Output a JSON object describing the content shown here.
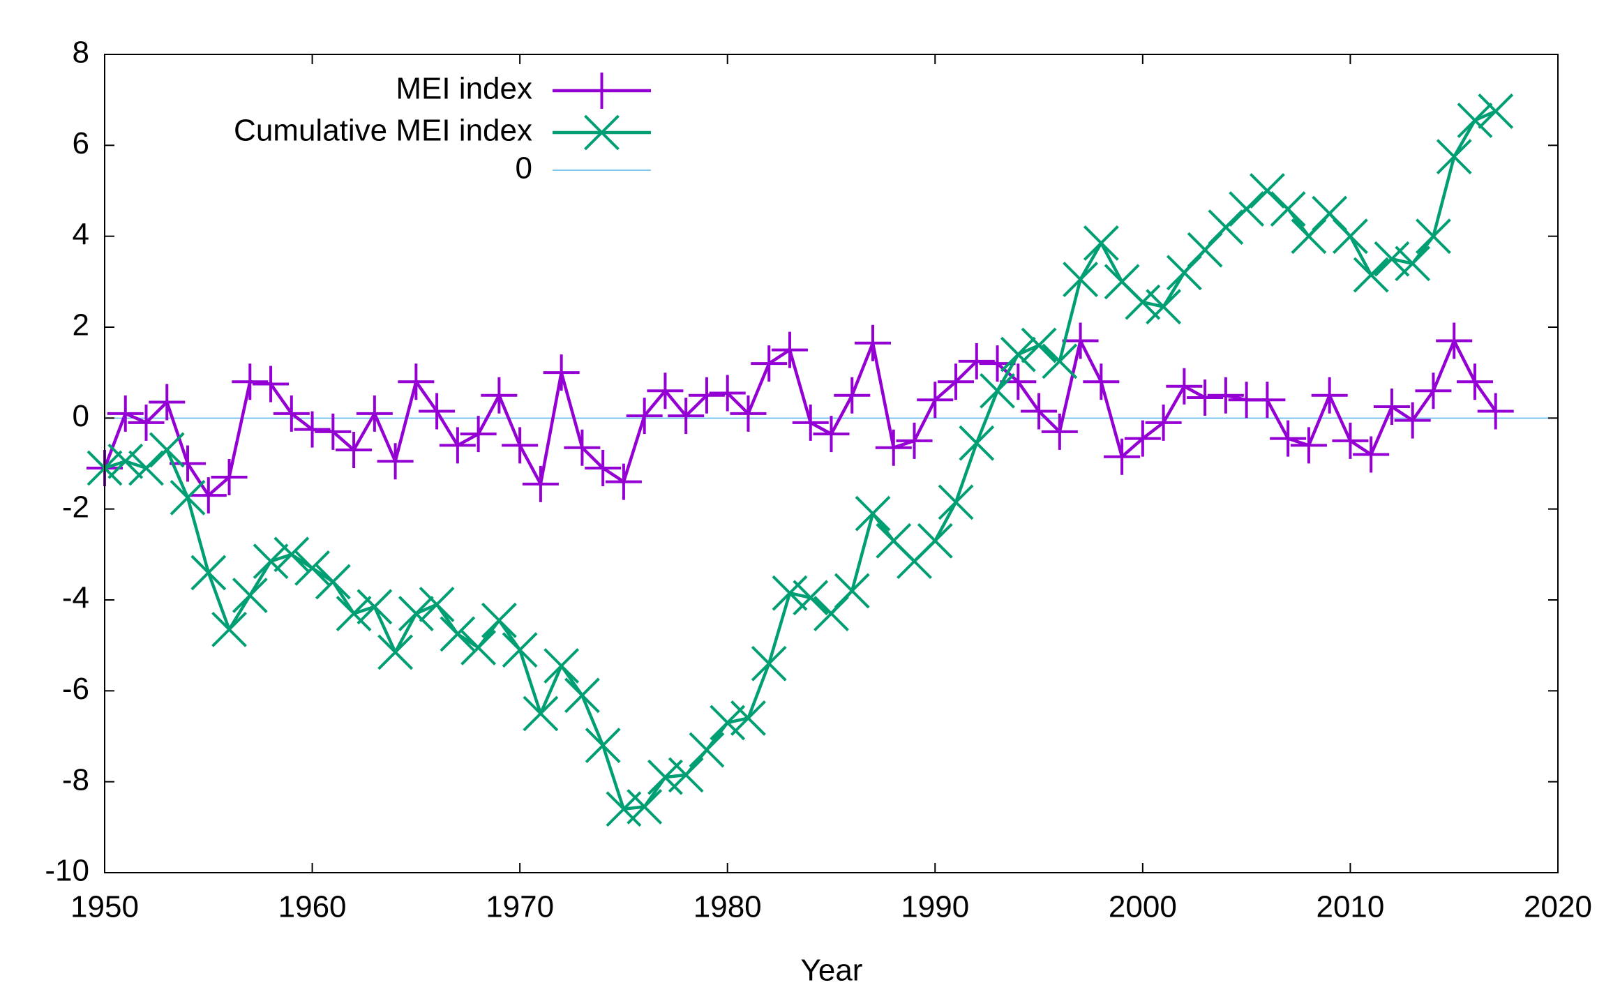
{
  "chart_data": {
    "type": "line",
    "xlabel": "Year",
    "x": [
      1950,
      1951,
      1952,
      1953,
      1954,
      1955,
      1956,
      1957,
      1958,
      1959,
      1960,
      1961,
      1962,
      1963,
      1964,
      1965,
      1966,
      1967,
      1968,
      1969,
      1970,
      1971,
      1972,
      1973,
      1974,
      1975,
      1976,
      1977,
      1978,
      1979,
      1980,
      1981,
      1982,
      1983,
      1984,
      1985,
      1986,
      1987,
      1988,
      1989,
      1990,
      1991,
      1992,
      1993,
      1994,
      1995,
      1996,
      1997,
      1998,
      1999,
      2000,
      2001,
      2002,
      2003,
      2004,
      2005,
      2006,
      2007,
      2008,
      2009,
      2010,
      2011,
      2012,
      2013,
      2014,
      2015,
      2016,
      2017
    ],
    "series": [
      {
        "name": "MEI index",
        "color": "#9400d3",
        "marker": "plus",
        "values": [
          -1.1,
          0.1,
          -0.1,
          0.35,
          -1.0,
          -1.7,
          -1.3,
          0.8,
          0.75,
          0.1,
          -0.25,
          -0.3,
          -0.7,
          0.1,
          -0.95,
          0.8,
          0.15,
          -0.6,
          -0.35,
          0.5,
          -0.6,
          -1.45,
          1.0,
          -0.65,
          -1.1,
          -1.4,
          0.05,
          0.6,
          0.05,
          0.5,
          0.55,
          0.1,
          1.2,
          1.5,
          -0.1,
          -0.35,
          0.5,
          1.65,
          -0.65,
          -0.5,
          0.4,
          0.8,
          1.25,
          1.2,
          0.8,
          0.15,
          -0.3,
          1.7,
          0.8,
          -0.85,
          -0.45,
          -0.1,
          0.7,
          0.45,
          0.5,
          0.4,
          0.4,
          -0.45,
          -0.6,
          0.5,
          -0.5,
          -0.8,
          0.25,
          -0.05,
          0.6,
          1.7,
          0.8,
          0.15
        ]
      },
      {
        "name": "Cumulative MEI index",
        "color": "#009e73",
        "marker": "cross",
        "values": [
          -1.1,
          -0.95,
          -1.1,
          -0.7,
          -1.75,
          -3.4,
          -4.65,
          -3.9,
          -3.15,
          -3.0,
          -3.3,
          -3.6,
          -4.3,
          -4.15,
          -5.15,
          -4.3,
          -4.1,
          -4.75,
          -5.05,
          -4.45,
          -5.1,
          -6.5,
          -5.45,
          -6.1,
          -7.2,
          -8.6,
          -8.55,
          -7.9,
          -7.85,
          -7.3,
          -6.7,
          -6.6,
          -5.4,
          -3.85,
          -3.95,
          -4.3,
          -3.8,
          -2.1,
          -2.7,
          -3.15,
          -2.7,
          -1.85,
          -0.55,
          0.6,
          1.4,
          1.6,
          1.25,
          3.05,
          3.85,
          3.0,
          2.55,
          2.45,
          3.2,
          3.7,
          4.2,
          4.6,
          5.0,
          4.6,
          4.0,
          4.5,
          4.0,
          3.15,
          3.5,
          3.4,
          4.0,
          5.75,
          6.55,
          6.75
        ]
      }
    ],
    "reference_line": {
      "name": "0",
      "value": 0,
      "color": "#56b4e9"
    },
    "xlim": [
      1950,
      2020
    ],
    "xticks": [
      1950,
      1960,
      1970,
      1980,
      1990,
      2000,
      2010,
      2020
    ],
    "ylim": [
      -10,
      8
    ],
    "yticks": [
      -10,
      -8,
      -6,
      -4,
      -2,
      0,
      2,
      4,
      6,
      8
    ],
    "legend": "top-left"
  }
}
